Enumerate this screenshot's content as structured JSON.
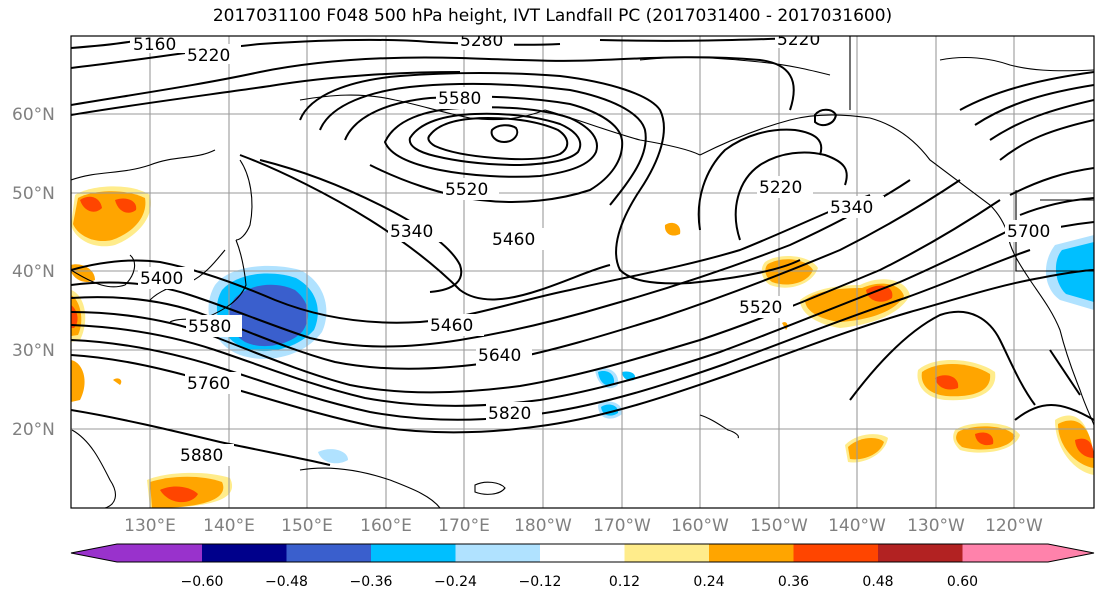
{
  "title": "2017031100 F048 500 hPa height, IVT Landfall PC (2017031400 - 2017031600)",
  "map": {
    "lon_labels": [
      "130°E",
      "140°E",
      "150°E",
      "160°E",
      "170°E",
      "180°W",
      "170°W",
      "160°W",
      "150°W",
      "140°W",
      "130°W",
      "120°W"
    ],
    "lat_labels": [
      "20°N",
      "30°N",
      "40°N",
      "50°N",
      "60°N"
    ],
    "contour_labels": [
      "5160",
      "5220",
      "5280",
      "5220",
      "5580",
      "5520",
      "5460",
      "5340",
      "5400",
      "5580",
      "5460",
      "5640",
      "5760",
      "5820",
      "5880",
      "5520",
      "5220",
      "5340",
      "5700"
    ]
  },
  "colorbar": {
    "ticks": [
      "−0.60",
      "−0.48",
      "−0.36",
      "−0.24",
      "−0.12",
      "0.12",
      "0.24",
      "0.36",
      "0.48",
      "0.60"
    ],
    "colors": [
      "#9932cc",
      "#00008b",
      "#3a5fcd",
      "#00bfff",
      "#b0e2ff",
      "#ffffff",
      "#ffffff",
      "#ffec8b",
      "#ffa500",
      "#ff4500",
      "#b22222",
      "#ff82ab"
    ]
  },
  "colors": {
    "pos_low": "#ffec8b",
    "pos_mid": "#ffa500",
    "pos_high": "#ff4500",
    "neg_low": "#b0e2ff",
    "neg_mid": "#00bfff",
    "neg_high": "#3a5fcd"
  }
}
